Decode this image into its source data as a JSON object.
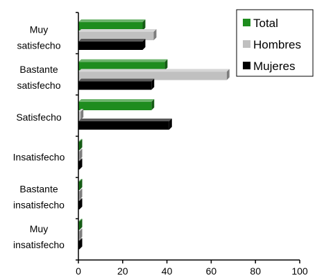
{
  "chart_data": {
    "type": "bar",
    "orientation": "horizontal",
    "style": "3d",
    "categories": [
      [
        "Muy",
        "satisfecho"
      ],
      [
        "Bastante",
        "satisfecho"
      ],
      [
        "Satisfecho"
      ],
      [
        "Insatisfecho"
      ],
      [
        "Bastante",
        "insatisfecho"
      ],
      [
        "Muy",
        "insatisfecho"
      ]
    ],
    "series": [
      {
        "name": "Total",
        "color": "#1e8c1e",
        "values": [
          29,
          39,
          33,
          0,
          0,
          0
        ]
      },
      {
        "name": "Hombres",
        "color": "#c0c0c0",
        "values": [
          34,
          67,
          1,
          0,
          0,
          0
        ]
      },
      {
        "name": "Mujeres",
        "color": "#000000",
        "values": [
          29,
          33,
          41,
          0,
          0,
          0
        ]
      }
    ],
    "xlim": [
      0,
      100
    ],
    "xticks": [
      0,
      20,
      40,
      60,
      80,
      100
    ],
    "grid": false,
    "legend_position": "top-right",
    "title": "",
    "xlabel": "",
    "ylabel": ""
  }
}
